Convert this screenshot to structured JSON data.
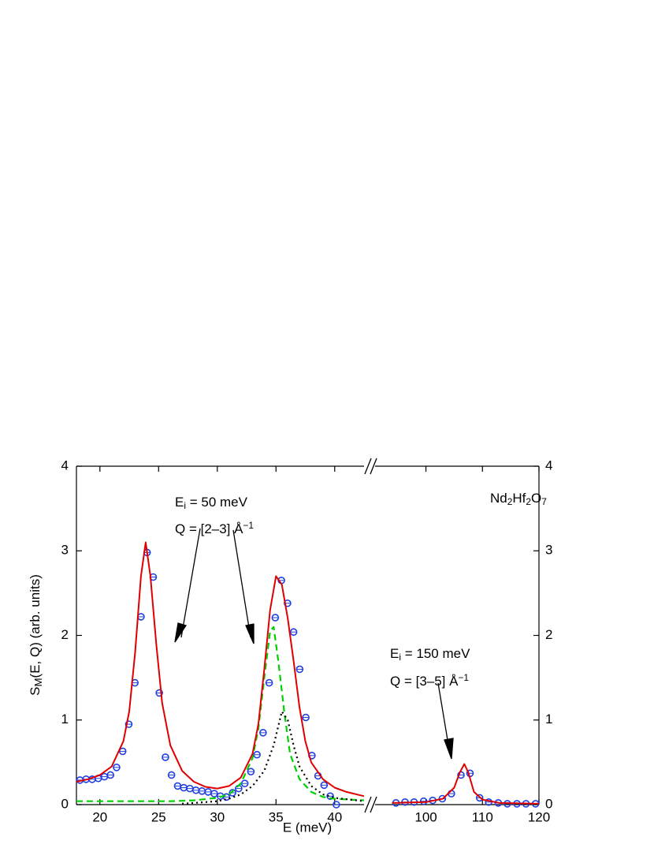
{
  "chart_data": {
    "type": "scatter",
    "xlabel": "E (meV)",
    "ylabel": [
      {
        "t": "S"
      },
      {
        "t": "M",
        "sub": true
      },
      {
        "t": "(E, Q) (arb. units)"
      }
    ],
    "ylim": [
      0,
      4
    ],
    "yticks": [
      0,
      1,
      2,
      3,
      4
    ],
    "y2lim": [
      0,
      4
    ],
    "y2ticks": [
      0,
      1,
      2,
      3,
      4
    ],
    "annotations": [
      [
        {
          "t": "E"
        },
        {
          "t": "i",
          "sub": true
        },
        {
          "t": " = 50 meV"
        }
      ],
      [
        {
          "t": "Q = [2–3] Å"
        },
        {
          "t": "−1",
          "sup": true
        }
      ],
      [
        {
          "t": "Nd"
        },
        {
          "t": "2",
          "sub": true
        },
        {
          "t": "Hf"
        },
        {
          "t": "2",
          "sub": true
        },
        {
          "t": "O"
        },
        {
          "t": "7",
          "sub": true
        }
      ],
      [
        {
          "t": "E"
        },
        {
          "t": "i",
          "sub": true
        },
        {
          "t": " = 150 meV"
        }
      ],
      [
        {
          "t": "Q = [3–5] Å"
        },
        {
          "t": "−1",
          "sup": true
        }
      ]
    ],
    "panels": [
      {
        "xlim": [
          18,
          42.5
        ],
        "xticks": [
          20,
          25,
          30,
          35,
          40
        ],
        "series": [
          {
            "kind": "scatter",
            "color": "#1f3fe0",
            "x": [
              18.3,
              18.82,
              19.34,
              19.86,
              20.38,
              20.9,
              21.42,
              21.94,
              22.46,
              22.98,
              23.5,
              24.02,
              24.54,
              25.06,
              25.58,
              26.1,
              26.62,
              27.14,
              27.66,
              28.18,
              28.7,
              29.22,
              29.74,
              30.26,
              30.78,
              31.3,
              31.82,
              32.34,
              32.86,
              33.38,
              33.9,
              34.42,
              34.94,
              35.46,
              35.98,
              36.5,
              37.02,
              37.54,
              38.06,
              38.58,
              39.1,
              39.62,
              40.14
            ],
            "y": [
              0.29,
              0.3,
              0.3,
              0.31,
              0.33,
              0.35,
              0.44,
              0.63,
              0.95,
              1.44,
              2.22,
              2.98,
              2.69,
              1.32,
              0.56,
              0.35,
              0.22,
              0.2,
              0.19,
              0.17,
              0.16,
              0.15,
              0.13,
              0.1,
              0.09,
              0.14,
              0.19,
              0.25,
              0.39,
              0.59,
              0.85,
              1.44,
              2.21,
              2.65,
              2.38,
              2.04,
              1.6,
              1.03,
              0.58,
              0.34,
              0.23,
              0.1,
              0.0
            ]
          },
          {
            "kind": "line",
            "color": "#00d000",
            "dash": "dashed",
            "x": [
              18,
              22,
              26,
              28,
              30,
              31,
              32,
              33,
              33.5,
              34,
              34.5,
              34.8,
              35.2,
              35.7,
              36.2,
              37,
              38,
              39,
              40,
              42.5
            ],
            "y": [
              0.04,
              0.04,
              0.04,
              0.05,
              0.08,
              0.12,
              0.25,
              0.55,
              0.9,
              1.5,
              2.05,
              2.1,
              1.7,
              1.1,
              0.6,
              0.3,
              0.15,
              0.09,
              0.07,
              0.05
            ]
          },
          {
            "kind": "line",
            "color": "#000000",
            "dash": "dotted",
            "x": [
              27,
              28,
              30,
              31,
              32,
              33,
              34,
              34.8,
              35.5,
              36,
              36.5,
              37,
              38,
              39,
              40,
              42.5
            ],
            "y": [
              0.01,
              0.02,
              0.04,
              0.07,
              0.12,
              0.22,
              0.4,
              0.7,
              1.1,
              1.0,
              0.7,
              0.45,
              0.22,
              0.12,
              0.08,
              0.04
            ]
          },
          {
            "kind": "line",
            "color": "#e00000",
            "dash": "solid",
            "x": [
              18,
              19,
              20,
              21,
              22,
              22.5,
              23,
              23.5,
              23.9,
              24.3,
              24.8,
              25.3,
              26,
              27,
              28,
              29,
              30,
              31,
              32,
              33,
              33.5,
              34,
              34.5,
              35,
              35.5,
              36,
              36.5,
              37,
              37.5,
              38,
              39,
              40,
              41,
              42.5
            ],
            "y": [
              0.27,
              0.3,
              0.35,
              0.45,
              0.75,
              1.1,
              1.8,
              2.7,
              3.1,
              2.7,
              1.9,
              1.2,
              0.7,
              0.4,
              0.27,
              0.21,
              0.19,
              0.22,
              0.32,
              0.6,
              0.95,
              1.6,
              2.3,
              2.7,
              2.6,
              2.2,
              1.7,
              1.15,
              0.75,
              0.5,
              0.3,
              0.2,
              0.15,
              0.1
            ]
          }
        ]
      },
      {
        "xlim": [
          91,
          120
        ],
        "xticks": [
          100,
          110,
          120
        ],
        "series": [
          {
            "kind": "scatter",
            "color": "#1f3fe0",
            "x": [
              94.7,
              96.3,
              97.9,
              99.6,
              101.2,
              102.9,
              104.5,
              106.2,
              107.8,
              109.5,
              111.1,
              112.8,
              114.4,
              116.1,
              117.7,
              119.4
            ],
            "y": [
              0.02,
              0.03,
              0.03,
              0.04,
              0.05,
              0.07,
              0.13,
              0.35,
              0.37,
              0.08,
              0.03,
              0.02,
              0.01,
              0.01,
              0.01,
              0.01
            ]
          },
          {
            "kind": "line",
            "color": "#e00000",
            "dash": "solid",
            "x": [
              94,
              100,
              103,
              105,
              106,
              106.8,
              107.5,
              108.5,
              110,
              113,
              120
            ],
            "y": [
              0.02,
              0.03,
              0.07,
              0.2,
              0.38,
              0.48,
              0.38,
              0.15,
              0.06,
              0.02,
              0.01
            ]
          }
        ]
      }
    ]
  }
}
